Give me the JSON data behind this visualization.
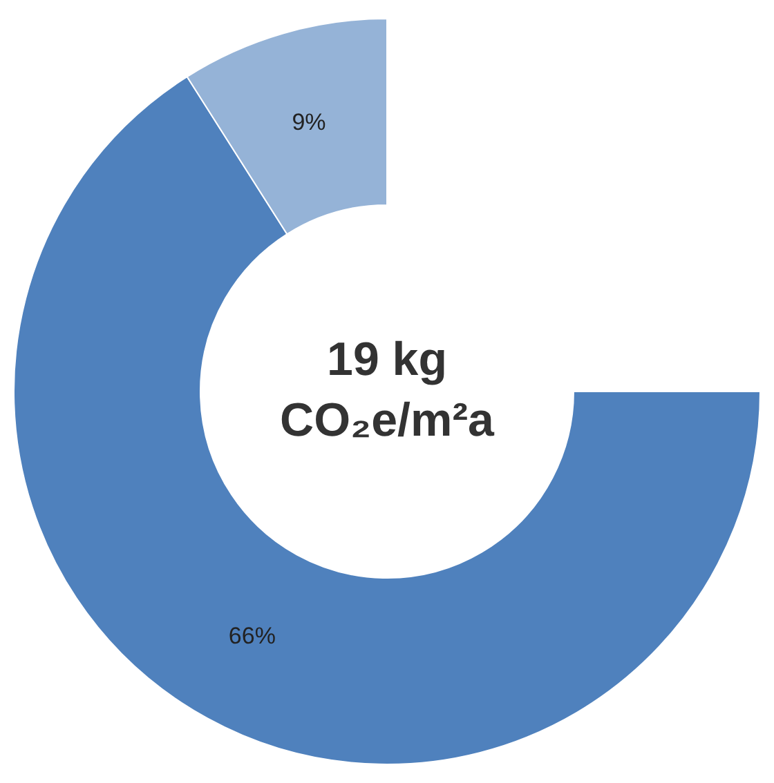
{
  "chart_data": {
    "type": "donut",
    "categories": [
      null,
      null
    ],
    "values": [
      66,
      9
    ],
    "colors": [
      "#4f81bd",
      "#95b3d7"
    ],
    "value_labels": [
      "66%",
      "9%"
    ],
    "annotations": [
      "19 kg",
      "CO₂e/m²a"
    ]
  }
}
